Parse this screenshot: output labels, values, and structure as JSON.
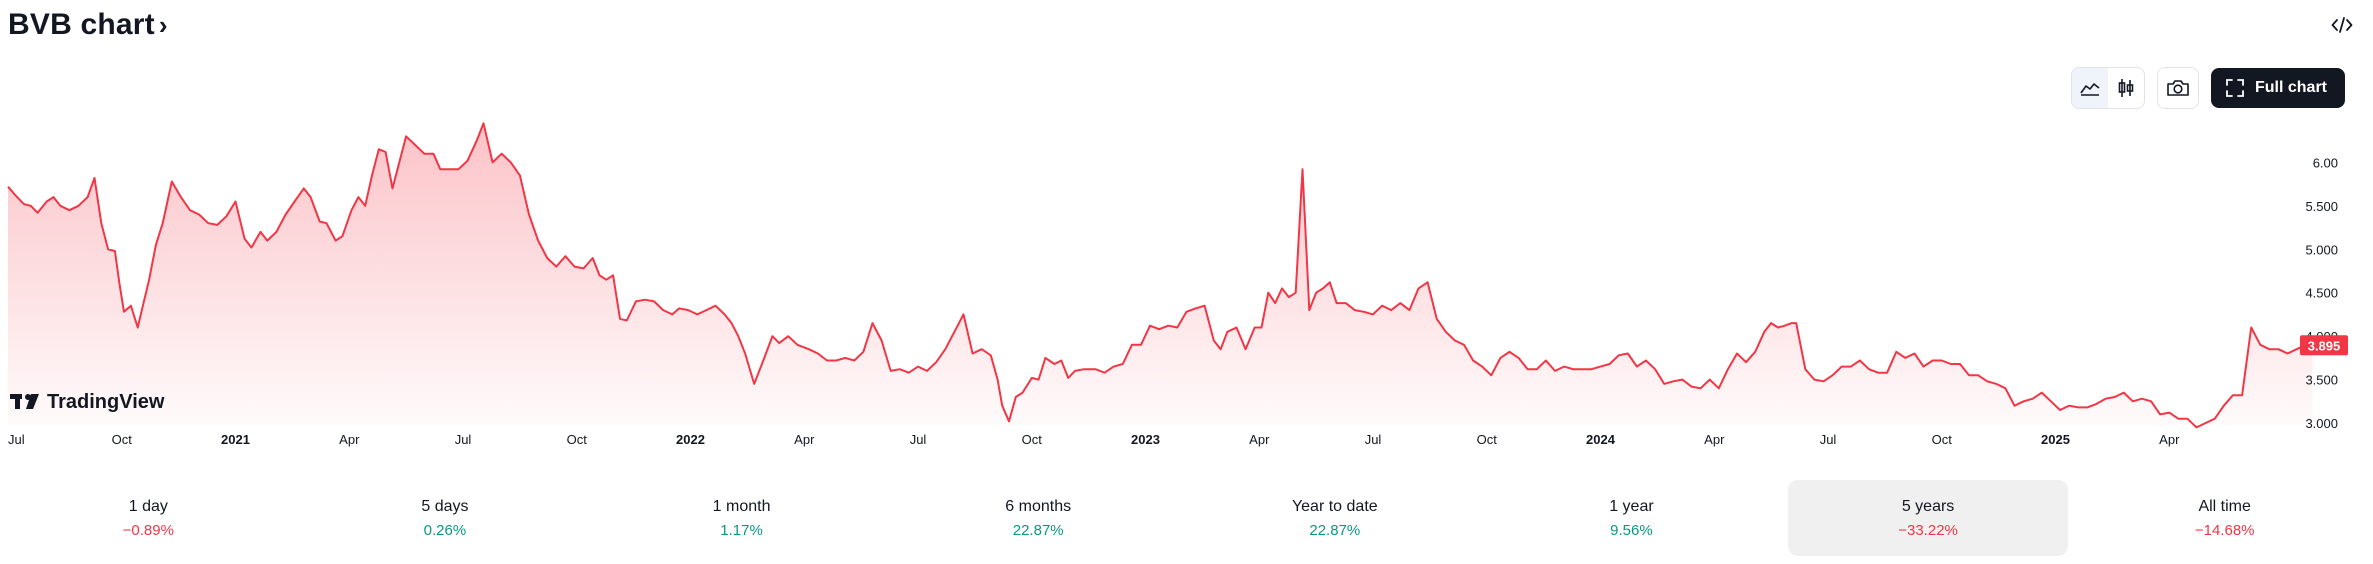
{
  "header": {
    "title": "BVB chart",
    "chevron": "›"
  },
  "toolbar": {
    "full_chart_label": "Full chart",
    "icons": [
      "area-chart-icon",
      "candles-icon",
      "camera-icon",
      "fullscreen-icon",
      "embed-code-icon"
    ]
  },
  "watermark": {
    "text": "TradingView"
  },
  "colors": {
    "line": "#f23645",
    "positive": "#089981",
    "negative": "#f23645",
    "badge_text": "#ffffff"
  },
  "periods": [
    {
      "label": "1 day",
      "value": "−0.89%",
      "trend": "neg",
      "active": false
    },
    {
      "label": "5 days",
      "value": "0.26%",
      "trend": "pos",
      "active": false
    },
    {
      "label": "1 month",
      "value": "1.17%",
      "trend": "pos",
      "active": false
    },
    {
      "label": "6 months",
      "value": "22.87%",
      "trend": "pos",
      "active": false
    },
    {
      "label": "Year to date",
      "value": "22.87%",
      "trend": "pos",
      "active": false
    },
    {
      "label": "1 year",
      "value": "9.56%",
      "trend": "pos",
      "active": false
    },
    {
      "label": "5 years",
      "value": "−33.22%",
      "trend": "neg",
      "active": true
    },
    {
      "label": "All time",
      "value": "−14.68%",
      "trend": "neg",
      "active": false
    }
  ],
  "chart_data": {
    "type": "area",
    "ylim": [
      2.92,
      6.2
    ],
    "y_ticks": [
      "3.000",
      "3.500",
      "4.000",
      "4.500",
      "5.000",
      "5.500",
      "6.00"
    ],
    "y_tick_values": [
      3.0,
      3.5,
      4.0,
      4.5,
      5.0,
      5.5,
      6.0
    ],
    "x_ticks": [
      {
        "label": "Jul",
        "t": 0.0,
        "bold": false
      },
      {
        "label": "Oct",
        "t": 0.25,
        "bold": false
      },
      {
        "label": "2021",
        "t": 0.5,
        "bold": true
      },
      {
        "label": "Apr",
        "t": 0.75,
        "bold": false
      },
      {
        "label": "Jul",
        "t": 1.0,
        "bold": false
      },
      {
        "label": "Oct",
        "t": 1.25,
        "bold": false
      },
      {
        "label": "2022",
        "t": 1.5,
        "bold": true
      },
      {
        "label": "Apr",
        "t": 1.75,
        "bold": false
      },
      {
        "label": "Jul",
        "t": 2.0,
        "bold": false
      },
      {
        "label": "Oct",
        "t": 2.25,
        "bold": false
      },
      {
        "label": "2023",
        "t": 2.5,
        "bold": true
      },
      {
        "label": "Apr",
        "t": 2.75,
        "bold": false
      },
      {
        "label": "Jul",
        "t": 3.0,
        "bold": false
      },
      {
        "label": "Oct",
        "t": 3.25,
        "bold": false
      },
      {
        "label": "2024",
        "t": 3.5,
        "bold": true
      },
      {
        "label": "Apr",
        "t": 3.75,
        "bold": false
      },
      {
        "label": "Jul",
        "t": 4.0,
        "bold": false
      },
      {
        "label": "Oct",
        "t": 4.25,
        "bold": false
      },
      {
        "label": "2025",
        "t": 4.5,
        "bold": true
      },
      {
        "label": "Apr",
        "t": 4.75,
        "bold": false
      }
    ],
    "last_value": 3.895,
    "last_label": "3.895",
    "series": [
      {
        "values": [
          [
            0.0,
            5.72
          ],
          [
            0.02,
            5.6
          ],
          [
            0.035,
            5.52
          ],
          [
            0.05,
            5.5
          ],
          [
            0.065,
            5.42
          ],
          [
            0.085,
            5.55
          ],
          [
            0.1,
            5.6
          ],
          [
            0.115,
            5.5
          ],
          [
            0.135,
            5.45
          ],
          [
            0.155,
            5.5
          ],
          [
            0.175,
            5.6
          ],
          [
            0.19,
            5.82
          ],
          [
            0.205,
            5.3
          ],
          [
            0.22,
            5.0
          ],
          [
            0.235,
            4.98
          ],
          [
            0.245,
            4.6
          ],
          [
            0.255,
            4.28
          ],
          [
            0.27,
            4.35
          ],
          [
            0.285,
            4.1
          ],
          [
            0.31,
            4.65
          ],
          [
            0.325,
            5.05
          ],
          [
            0.34,
            5.3
          ],
          [
            0.36,
            5.78
          ],
          [
            0.38,
            5.6
          ],
          [
            0.4,
            5.45
          ],
          [
            0.42,
            5.4
          ],
          [
            0.44,
            5.3
          ],
          [
            0.46,
            5.28
          ],
          [
            0.48,
            5.38
          ],
          [
            0.5,
            5.55
          ],
          [
            0.52,
            5.12
          ],
          [
            0.535,
            5.02
          ],
          [
            0.555,
            5.2
          ],
          [
            0.57,
            5.1
          ],
          [
            0.59,
            5.2
          ],
          [
            0.61,
            5.4
          ],
          [
            0.63,
            5.55
          ],
          [
            0.65,
            5.7
          ],
          [
            0.665,
            5.6
          ],
          [
            0.685,
            5.32
          ],
          [
            0.7,
            5.3
          ],
          [
            0.72,
            5.1
          ],
          [
            0.735,
            5.15
          ],
          [
            0.755,
            5.45
          ],
          [
            0.77,
            5.6
          ],
          [
            0.785,
            5.5
          ],
          [
            0.8,
            5.85
          ],
          [
            0.815,
            6.15
          ],
          [
            0.83,
            6.12
          ],
          [
            0.845,
            5.7
          ],
          [
            0.86,
            6.0
          ],
          [
            0.875,
            6.3
          ],
          [
            0.895,
            6.2
          ],
          [
            0.915,
            6.1
          ],
          [
            0.935,
            6.1
          ],
          [
            0.95,
            5.92
          ],
          [
            0.97,
            5.92
          ],
          [
            0.99,
            5.92
          ],
          [
            1.01,
            6.02
          ],
          [
            1.03,
            6.25
          ],
          [
            1.045,
            6.45
          ],
          [
            1.065,
            6.0
          ],
          [
            1.085,
            6.1
          ],
          [
            1.105,
            6.0
          ],
          [
            1.125,
            5.85
          ],
          [
            1.145,
            5.4
          ],
          [
            1.165,
            5.1
          ],
          [
            1.185,
            4.9
          ],
          [
            1.205,
            4.8
          ],
          [
            1.225,
            4.92
          ],
          [
            1.245,
            4.8
          ],
          [
            1.265,
            4.78
          ],
          [
            1.285,
            4.9
          ],
          [
            1.3,
            4.7
          ],
          [
            1.315,
            4.65
          ],
          [
            1.33,
            4.7
          ],
          [
            1.345,
            4.2
          ],
          [
            1.36,
            4.18
          ],
          [
            1.38,
            4.4
          ],
          [
            1.4,
            4.42
          ],
          [
            1.42,
            4.4
          ],
          [
            1.44,
            4.3
          ],
          [
            1.46,
            4.25
          ],
          [
            1.475,
            4.32
          ],
          [
            1.495,
            4.3
          ],
          [
            1.515,
            4.25
          ],
          [
            1.535,
            4.3
          ],
          [
            1.555,
            4.35
          ],
          [
            1.575,
            4.25
          ],
          [
            1.59,
            4.15
          ],
          [
            1.605,
            4.0
          ],
          [
            1.62,
            3.8
          ],
          [
            1.64,
            3.45
          ],
          [
            1.66,
            3.72
          ],
          [
            1.68,
            4.0
          ],
          [
            1.695,
            3.92
          ],
          [
            1.715,
            4.0
          ],
          [
            1.735,
            3.9
          ],
          [
            1.76,
            3.85
          ],
          [
            1.78,
            3.8
          ],
          [
            1.8,
            3.72
          ],
          [
            1.82,
            3.72
          ],
          [
            1.84,
            3.75
          ],
          [
            1.86,
            3.72
          ],
          [
            1.88,
            3.82
          ],
          [
            1.9,
            4.15
          ],
          [
            1.92,
            3.95
          ],
          [
            1.94,
            3.6
          ],
          [
            1.96,
            3.62
          ],
          [
            1.98,
            3.58
          ],
          [
            2.0,
            3.65
          ],
          [
            2.02,
            3.6
          ],
          [
            2.04,
            3.7
          ],
          [
            2.06,
            3.85
          ],
          [
            2.08,
            4.05
          ],
          [
            2.1,
            4.25
          ],
          [
            2.12,
            3.8
          ],
          [
            2.14,
            3.85
          ],
          [
            2.16,
            3.78
          ],
          [
            2.175,
            3.5
          ],
          [
            2.185,
            3.2
          ],
          [
            2.2,
            3.02
          ],
          [
            2.215,
            3.3
          ],
          [
            2.23,
            3.35
          ],
          [
            2.25,
            3.52
          ],
          [
            2.265,
            3.5
          ],
          [
            2.28,
            3.75
          ],
          [
            2.3,
            3.68
          ],
          [
            2.315,
            3.72
          ],
          [
            2.33,
            3.52
          ],
          [
            2.345,
            3.6
          ],
          [
            2.365,
            3.62
          ],
          [
            2.39,
            3.62
          ],
          [
            2.41,
            3.58
          ],
          [
            2.43,
            3.65
          ],
          [
            2.45,
            3.68
          ],
          [
            2.47,
            3.9
          ],
          [
            2.49,
            3.9
          ],
          [
            2.51,
            4.12
          ],
          [
            2.53,
            4.08
          ],
          [
            2.55,
            4.12
          ],
          [
            2.57,
            4.1
          ],
          [
            2.59,
            4.28
          ],
          [
            2.61,
            4.32
          ],
          [
            2.63,
            4.35
          ],
          [
            2.65,
            3.95
          ],
          [
            2.665,
            3.85
          ],
          [
            2.68,
            4.05
          ],
          [
            2.7,
            4.1
          ],
          [
            2.72,
            3.85
          ],
          [
            2.74,
            4.1
          ],
          [
            2.755,
            4.1
          ],
          [
            2.77,
            4.5
          ],
          [
            2.785,
            4.38
          ],
          [
            2.8,
            4.55
          ],
          [
            2.815,
            4.45
          ],
          [
            2.83,
            4.5
          ],
          [
            2.845,
            5.92
          ],
          [
            2.86,
            4.3
          ],
          [
            2.875,
            4.5
          ],
          [
            2.89,
            4.55
          ],
          [
            2.905,
            4.62
          ],
          [
            2.92,
            4.38
          ],
          [
            2.94,
            4.38
          ],
          [
            2.96,
            4.3
          ],
          [
            2.98,
            4.28
          ],
          [
            3.0,
            4.25
          ],
          [
            3.02,
            4.35
          ],
          [
            3.04,
            4.3
          ],
          [
            3.06,
            4.38
          ],
          [
            3.08,
            4.3
          ],
          [
            3.1,
            4.55
          ],
          [
            3.12,
            4.62
          ],
          [
            3.14,
            4.2
          ],
          [
            3.16,
            4.05
          ],
          [
            3.18,
            3.95
          ],
          [
            3.2,
            3.9
          ],
          [
            3.22,
            3.72
          ],
          [
            3.24,
            3.65
          ],
          [
            3.26,
            3.55
          ],
          [
            3.28,
            3.75
          ],
          [
            3.3,
            3.82
          ],
          [
            3.32,
            3.75
          ],
          [
            3.34,
            3.62
          ],
          [
            3.36,
            3.62
          ],
          [
            3.38,
            3.72
          ],
          [
            3.4,
            3.6
          ],
          [
            3.42,
            3.65
          ],
          [
            3.44,
            3.62
          ],
          [
            3.46,
            3.62
          ],
          [
            3.48,
            3.62
          ],
          [
            3.5,
            3.65
          ],
          [
            3.52,
            3.68
          ],
          [
            3.54,
            3.78
          ],
          [
            3.56,
            3.8
          ],
          [
            3.58,
            3.65
          ],
          [
            3.6,
            3.72
          ],
          [
            3.62,
            3.62
          ],
          [
            3.64,
            3.45
          ],
          [
            3.66,
            3.48
          ],
          [
            3.68,
            3.5
          ],
          [
            3.7,
            3.42
          ],
          [
            3.72,
            3.4
          ],
          [
            3.74,
            3.5
          ],
          [
            3.76,
            3.4
          ],
          [
            3.78,
            3.62
          ],
          [
            3.8,
            3.8
          ],
          [
            3.82,
            3.7
          ],
          [
            3.84,
            3.82
          ],
          [
            3.86,
            4.05
          ],
          [
            3.875,
            4.15
          ],
          [
            3.89,
            4.1
          ],
          [
            3.905,
            4.12
          ],
          [
            3.92,
            4.15
          ],
          [
            3.93,
            4.15
          ],
          [
            3.95,
            3.62
          ],
          [
            3.97,
            3.5
          ],
          [
            3.99,
            3.48
          ],
          [
            4.01,
            3.55
          ],
          [
            4.03,
            3.65
          ],
          [
            4.05,
            3.65
          ],
          [
            4.07,
            3.72
          ],
          [
            4.09,
            3.62
          ],
          [
            4.11,
            3.58
          ],
          [
            4.13,
            3.58
          ],
          [
            4.15,
            3.82
          ],
          [
            4.17,
            3.75
          ],
          [
            4.19,
            3.8
          ],
          [
            4.21,
            3.65
          ],
          [
            4.23,
            3.72
          ],
          [
            4.25,
            3.72
          ],
          [
            4.27,
            3.68
          ],
          [
            4.29,
            3.68
          ],
          [
            4.31,
            3.55
          ],
          [
            4.33,
            3.55
          ],
          [
            4.35,
            3.48
          ],
          [
            4.37,
            3.45
          ],
          [
            4.39,
            3.4
          ],
          [
            4.41,
            3.2
          ],
          [
            4.43,
            3.25
          ],
          [
            4.45,
            3.28
          ],
          [
            4.47,
            3.35
          ],
          [
            4.49,
            3.25
          ],
          [
            4.51,
            3.15
          ],
          [
            4.53,
            3.2
          ],
          [
            4.55,
            3.18
          ],
          [
            4.57,
            3.18
          ],
          [
            4.59,
            3.22
          ],
          [
            4.61,
            3.28
          ],
          [
            4.63,
            3.3
          ],
          [
            4.65,
            3.35
          ],
          [
            4.67,
            3.25
          ],
          [
            4.69,
            3.28
          ],
          [
            4.71,
            3.25
          ],
          [
            4.73,
            3.1
          ],
          [
            4.75,
            3.12
          ],
          [
            4.77,
            3.05
          ],
          [
            4.79,
            3.05
          ],
          [
            4.81,
            2.95
          ],
          [
            4.83,
            3.0
          ],
          [
            4.85,
            3.05
          ],
          [
            4.87,
            3.2
          ],
          [
            4.89,
            3.32
          ],
          [
            4.91,
            3.32
          ],
          [
            4.93,
            4.1
          ],
          [
            4.95,
            3.9
          ],
          [
            4.97,
            3.85
          ],
          [
            4.99,
            3.85
          ],
          [
            5.01,
            3.8
          ],
          [
            5.03,
            3.85
          ],
          [
            5.05,
            3.9
          ],
          [
            5.065,
            3.895
          ]
        ]
      }
    ]
  }
}
